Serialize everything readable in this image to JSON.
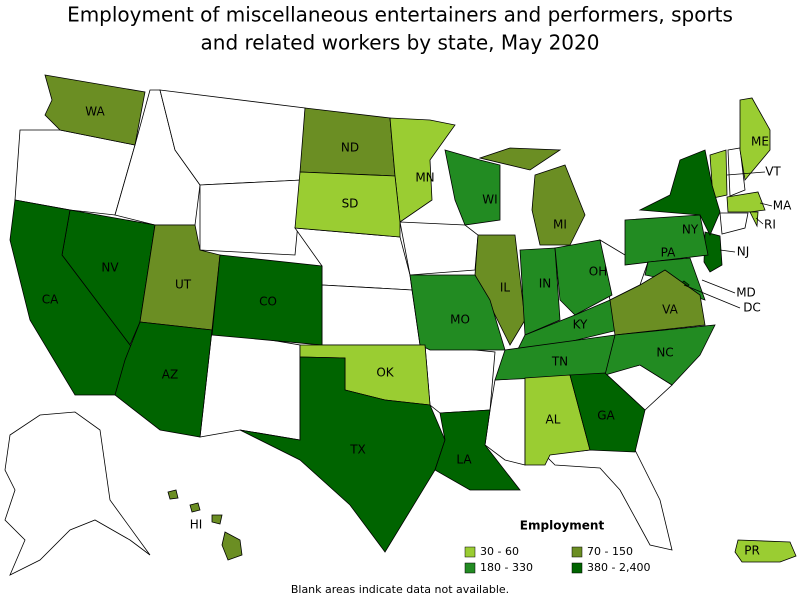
{
  "title": [
    "Employment of miscellaneous entertainers and performers, sports",
    "and related workers by state, May 2020"
  ],
  "legend": {
    "title": "Employment",
    "levels": [
      {
        "label": "30 - 60",
        "color": "#9acd32"
      },
      {
        "label": "70 - 150",
        "color": "#6b8e23"
      },
      {
        "label": "180 - 330",
        "color": "#228b22"
      },
      {
        "label": "380 - 2,400",
        "color": "#006400"
      }
    ]
  },
  "states": [
    {
      "label": "WA",
      "level": 1
    },
    {
      "label": "ND",
      "level": 1
    },
    {
      "label": "ME",
      "level": 0
    },
    {
      "label": "VT",
      "level": 0
    },
    {
      "label": "MA",
      "level": 0
    },
    {
      "label": "RI",
      "level": 0
    },
    {
      "label": "NJ",
      "level": 3
    },
    {
      "label": "MN",
      "level": 0
    },
    {
      "label": "SD",
      "level": 0
    },
    {
      "label": "WI",
      "level": 2
    },
    {
      "label": "NY",
      "level": 3
    },
    {
      "label": "MI",
      "level": 1
    },
    {
      "label": "PA",
      "level": 2
    },
    {
      "label": "NV",
      "level": 3
    },
    {
      "label": "UT",
      "level": 1
    },
    {
      "label": "CO",
      "level": 3
    },
    {
      "label": "CA",
      "level": 3
    },
    {
      "label": "IL",
      "level": 1
    },
    {
      "label": "IN",
      "level": 2
    },
    {
      "label": "OH",
      "level": 2
    },
    {
      "label": "MD",
      "level": 2
    },
    {
      "label": "DC",
      "level": 3
    },
    {
      "label": "KY",
      "level": 2
    },
    {
      "label": "MO",
      "level": 2
    },
    {
      "label": "VA",
      "level": 1
    },
    {
      "label": "TN",
      "level": 2
    },
    {
      "label": "NC",
      "level": 2
    },
    {
      "label": "OK",
      "level": 0
    },
    {
      "label": "AZ",
      "level": 3
    },
    {
      "label": "AL",
      "level": 0
    },
    {
      "label": "GA",
      "level": 3
    },
    {
      "label": "TX",
      "level": 3
    },
    {
      "label": "LA",
      "level": 3
    },
    {
      "label": "HI",
      "level": 1
    },
    {
      "label": "PR",
      "level": 0
    }
  ],
  "footnote": "Blank areas indicate data not available."
}
